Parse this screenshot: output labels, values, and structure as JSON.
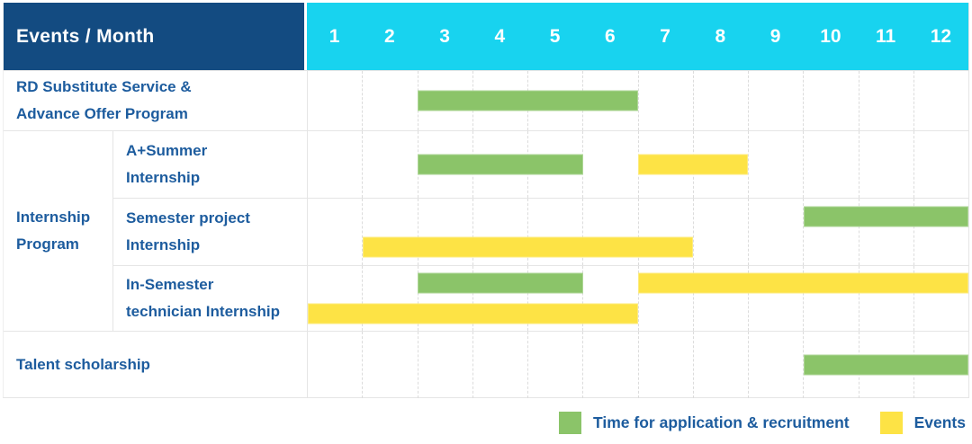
{
  "header": {
    "corner_label": "Events / Month",
    "months": [
      "1",
      "2",
      "3",
      "4",
      "5",
      "6",
      "7",
      "8",
      "9",
      "10",
      "11",
      "12"
    ]
  },
  "colors": {
    "header_bg": "#134b81",
    "months_bg": "#18d3ef",
    "label_text": "#1d5c9e",
    "green": "#8bc469",
    "yellow": "#fde345"
  },
  "group": {
    "label_lines": [
      "Internship",
      "Program"
    ]
  },
  "rows": [
    {
      "label_lines": [
        "RD Substitute Service &",
        "Advance Offer Program"
      ],
      "bars": [
        {
          "color": "green",
          "start": 3,
          "end": 6,
          "line": "mid"
        }
      ]
    },
    {
      "label_lines": [
        "A+Summer",
        "Internship"
      ],
      "bars": [
        {
          "color": "green",
          "start": 3,
          "end": 5,
          "line": "mid"
        },
        {
          "color": "yellow",
          "start": 7,
          "end": 8,
          "line": "mid"
        }
      ]
    },
    {
      "label_lines": [
        "Semester project",
        "Internship"
      ],
      "bars": [
        {
          "color": "green",
          "start": 10,
          "end": 12,
          "line": "top"
        },
        {
          "color": "yellow",
          "start": 2,
          "end": 7,
          "line": "bottom"
        }
      ]
    },
    {
      "label_lines": [
        "In-Semester",
        "technician Internship"
      ],
      "bars": [
        {
          "color": "green",
          "start": 3,
          "end": 5,
          "line": "top"
        },
        {
          "color": "yellow",
          "start": 7,
          "end": 12,
          "line": "top"
        },
        {
          "color": "yellow",
          "start": 1,
          "end": 6,
          "line": "bottom"
        }
      ]
    },
    {
      "label_lines": [
        "Talent scholarship"
      ],
      "bars": [
        {
          "color": "green",
          "start": 10,
          "end": 12,
          "line": "mid"
        }
      ]
    }
  ],
  "legend": [
    {
      "color": "green",
      "label": "Time for application & recruitment"
    },
    {
      "color": "yellow",
      "label": "Events"
    }
  ],
  "chart_data": {
    "type": "bar",
    "subtype": "gantt",
    "x_unit": "month",
    "x_range": [
      1,
      12
    ],
    "x_ticks": [
      1,
      2,
      3,
      4,
      5,
      6,
      7,
      8,
      9,
      10,
      11,
      12
    ],
    "corner_title": "Events / Month",
    "categories": [
      "RD Substitute Service & Advance Offer Program",
      "Internship Program / A+Summer Internship",
      "Internship Program / Semester project Internship",
      "Internship Program / In-Semester technician Internship",
      "Talent scholarship"
    ],
    "series": [
      {
        "name": "Time for application & recruitment",
        "color": "#8bc469",
        "bars": [
          {
            "category": "RD Substitute Service & Advance Offer Program",
            "start_month": 3,
            "end_month": 6
          },
          {
            "category": "Internship Program / A+Summer Internship",
            "start_month": 3,
            "end_month": 5
          },
          {
            "category": "Internship Program / Semester project Internship",
            "start_month": 10,
            "end_month": 12
          },
          {
            "category": "Internship Program / In-Semester technician Internship",
            "start_month": 3,
            "end_month": 5
          },
          {
            "category": "Talent scholarship",
            "start_month": 10,
            "end_month": 12
          }
        ]
      },
      {
        "name": "Events",
        "color": "#fde345",
        "bars": [
          {
            "category": "Internship Program / A+Summer Internship",
            "start_month": 7,
            "end_month": 8
          },
          {
            "category": "Internship Program / Semester project Internship",
            "start_month": 2,
            "end_month": 7
          },
          {
            "category": "Internship Program / In-Semester technician Internship",
            "start_month": 7,
            "end_month": 12
          },
          {
            "category": "Internship Program / In-Semester technician Internship",
            "start_month": 1,
            "end_month": 6
          }
        ]
      }
    ],
    "legend_position": "bottom-right",
    "grid": "dashed-vertical-month-lines"
  }
}
